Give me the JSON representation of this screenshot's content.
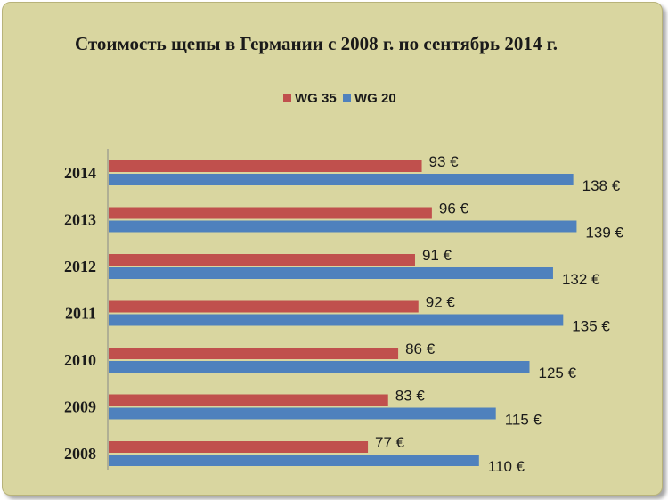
{
  "chart_data": {
    "type": "bar",
    "orientation": "horizontal",
    "title": "Стоимость щепы в Германии с 2008 г. по сентябрь 2014 г.",
    "categories": [
      "2014",
      "2013",
      "2012",
      "2011",
      "2010",
      "2009",
      "2008"
    ],
    "series": [
      {
        "name": "WG 35",
        "color": "#c0504d",
        "values": [
          93,
          96,
          91,
          92,
          86,
          83,
          77
        ],
        "labels": [
          "93 €",
          "96 €",
          "91 €",
          "92 €",
          "86 €",
          "83 €",
          "77 €"
        ]
      },
      {
        "name": "WG 20",
        "color": "#4f81bd",
        "values": [
          138,
          139,
          132,
          135,
          125,
          115,
          110
        ],
        "labels": [
          "138 €",
          "139 €",
          "132 €",
          "135 €",
          "125 €",
          "115 €",
          "110 €"
        ]
      }
    ],
    "xlim": [
      0,
      160
    ],
    "legend_position": "top",
    "grid": false,
    "background_color": "#d9d6a0"
  }
}
